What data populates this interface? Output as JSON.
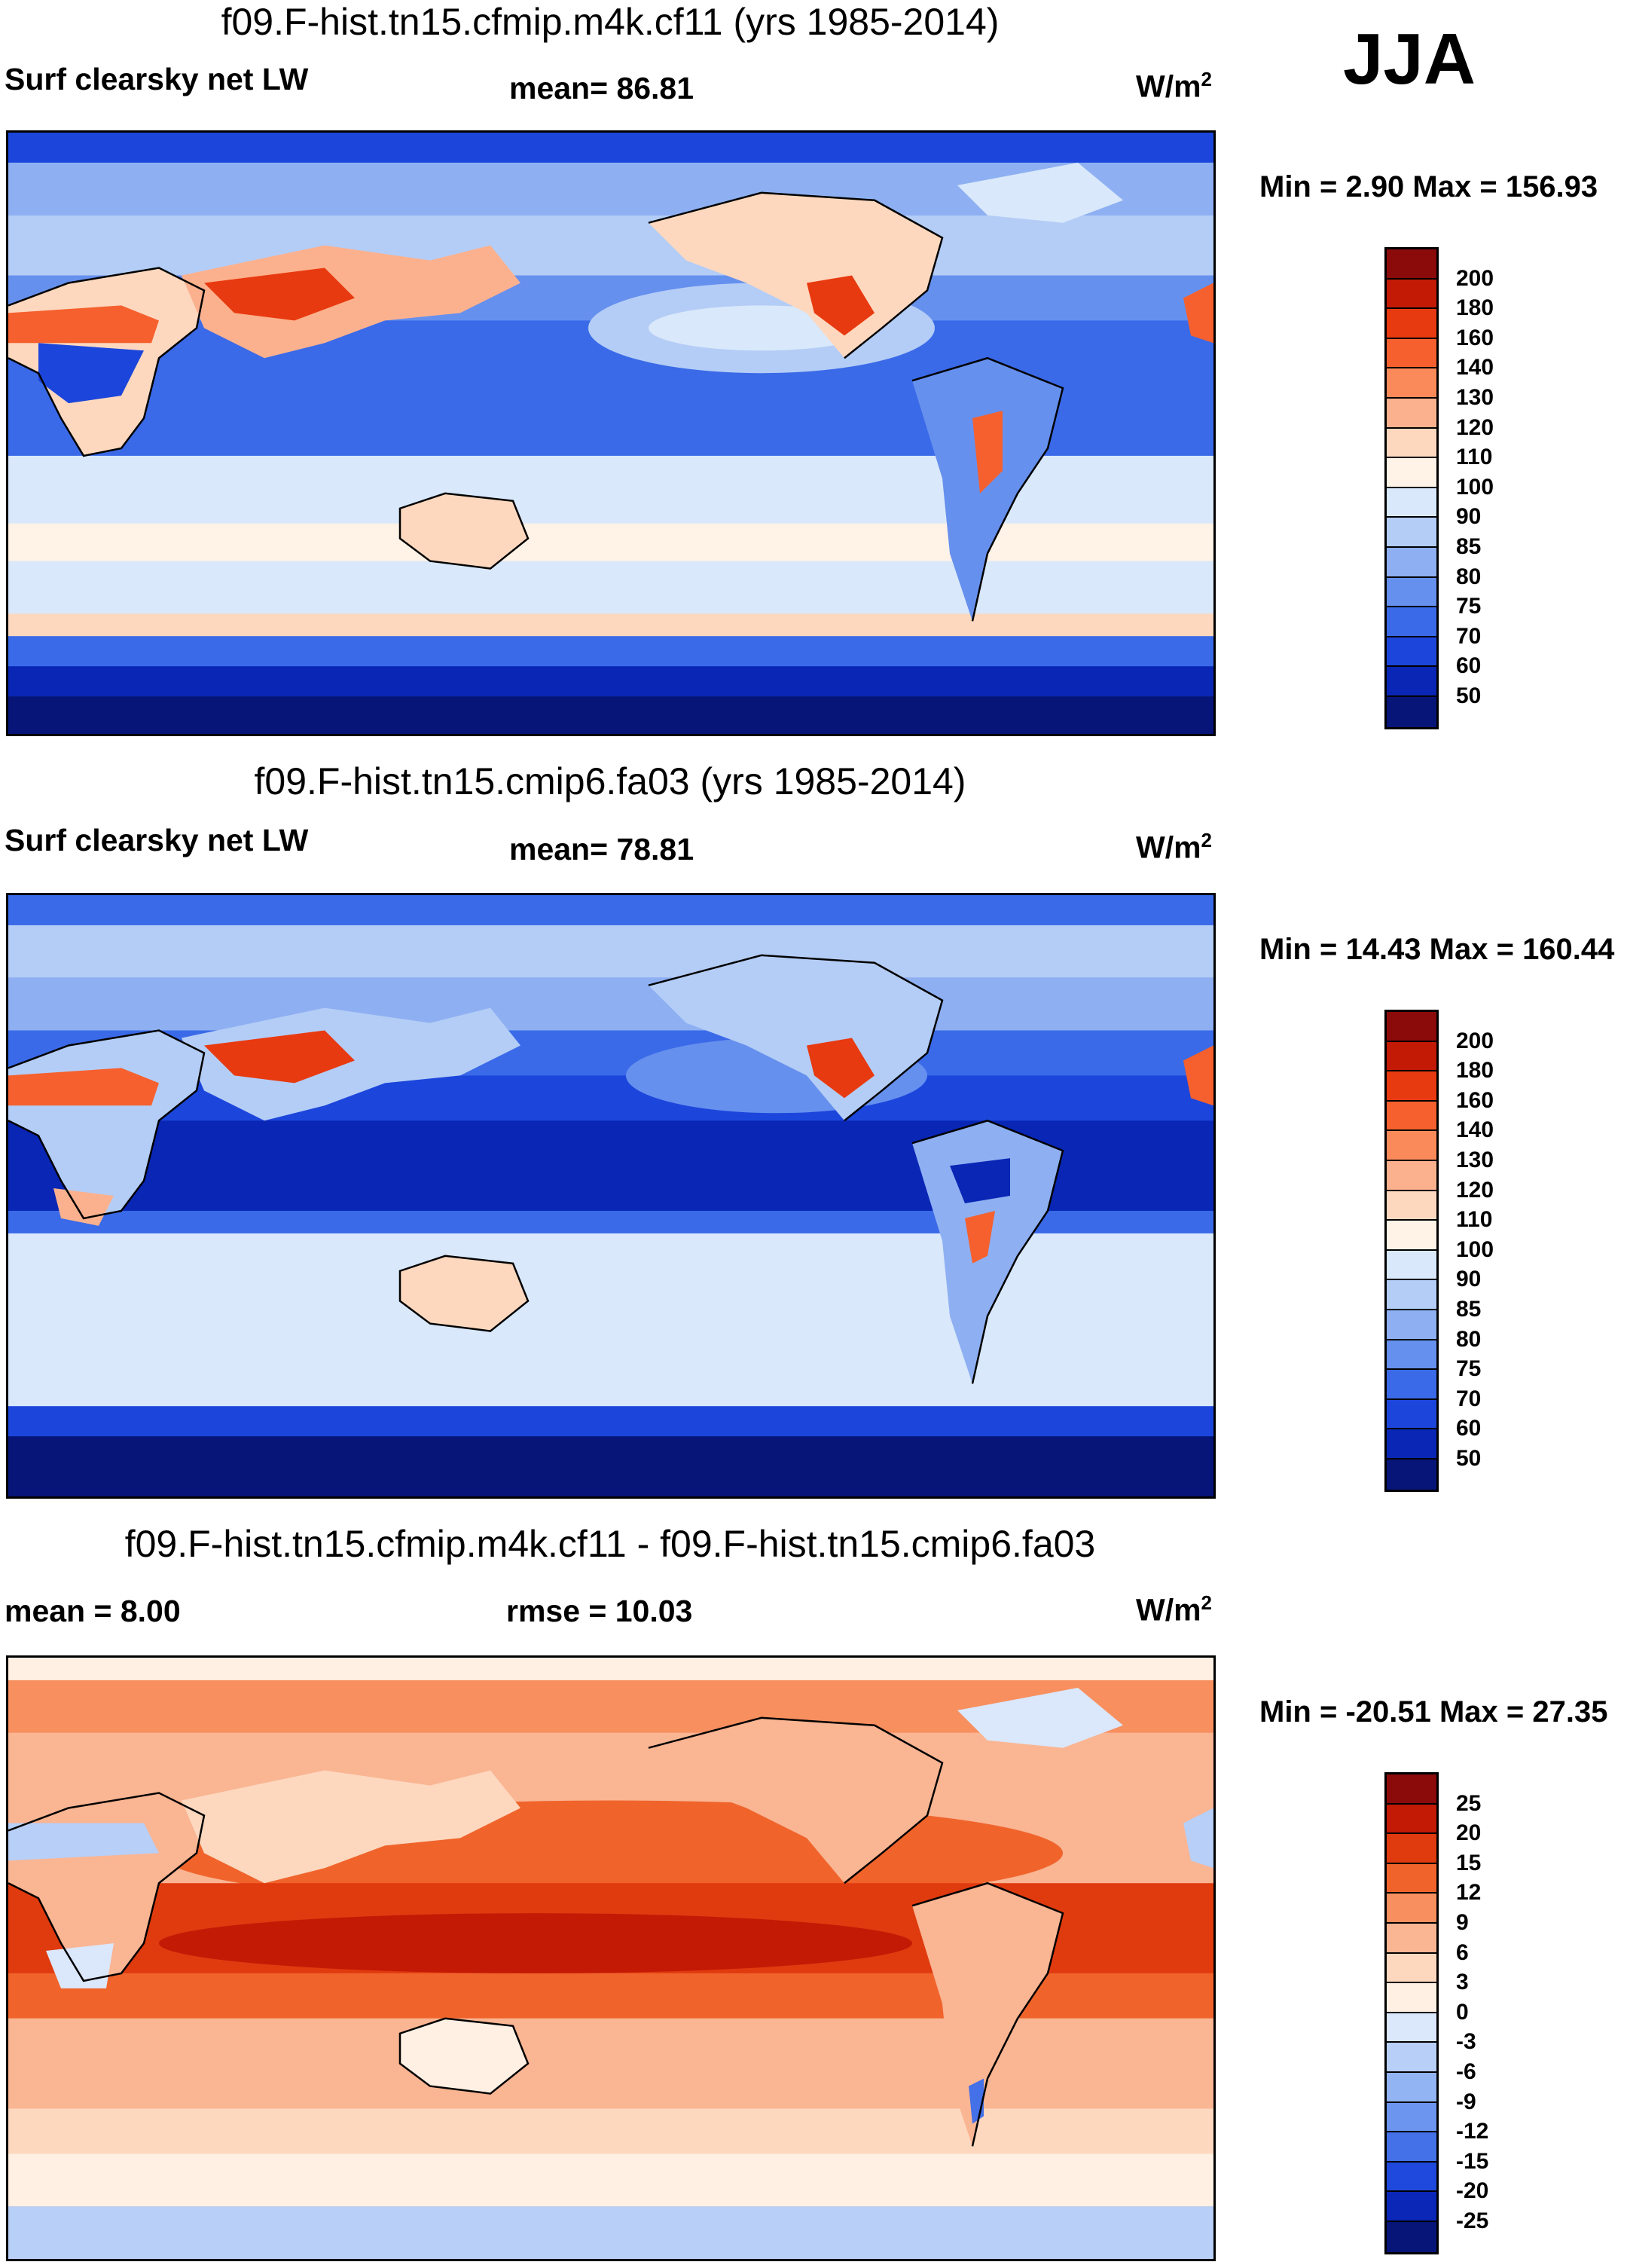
{
  "season": "JJA",
  "panels": [
    {
      "title": "f09.F-hist.tn15.cfmip.m4k.cf11 (yrs 1985-2014)",
      "left_label": "Surf clearsky net LW",
      "center_label": "mean=  86.81",
      "units_base": "W/m",
      "units_exp": "2",
      "minmax": "Min =   2.90 Max = 156.93",
      "colorbar": {
        "labels": [
          "200",
          "180",
          "160",
          "140",
          "130",
          "120",
          "110",
          "100",
          "90",
          "85",
          "80",
          "75",
          "70",
          "60",
          "50"
        ],
        "colors": [
          "#8b0a0a",
          "#c21a05",
          "#e83a10",
          "#f5602e",
          "#fa8a5a",
          "#fcb18e",
          "#fdd8bf",
          "#fff2e6",
          "#d9e8fb",
          "#b4cdf6",
          "#8eb0f2",
          "#6690ee",
          "#3a6ae8",
          "#1c46db",
          "#0a26b5",
          "#061577"
        ]
      }
    },
    {
      "title": "f09.F-hist.tn15.cmip6.fa03 (yrs 1985-2014)",
      "left_label": "Surf clearsky net LW",
      "center_label": "mean=  78.81",
      "units_base": "W/m",
      "units_exp": "2",
      "minmax": "Min =  14.43 Max = 160.44",
      "colorbar": {
        "labels": [
          "200",
          "180",
          "160",
          "140",
          "130",
          "120",
          "110",
          "100",
          "90",
          "85",
          "80",
          "75",
          "70",
          "60",
          "50"
        ],
        "colors": [
          "#8b0a0a",
          "#c21a05",
          "#e83a10",
          "#f5602e",
          "#fa8a5a",
          "#fcb18e",
          "#fdd8bf",
          "#fff2e6",
          "#d9e8fb",
          "#b4cdf6",
          "#8eb0f2",
          "#6690ee",
          "#3a6ae8",
          "#1c46db",
          "#0a26b5",
          "#061577"
        ]
      }
    },
    {
      "title": "f09.F-hist.tn15.cfmip.m4k.cf11 - f09.F-hist.tn15.cmip6.fa03",
      "left_label": "mean =   8.00",
      "center_label": "rmse =  10.03",
      "units_base": "W/m",
      "units_exp": "2",
      "minmax": "Min = -20.51 Max =  27.35",
      "colorbar": {
        "labels": [
          "25",
          "20",
          "15",
          "12",
          "9",
          "6",
          "3",
          "0",
          "-3",
          "-6",
          "-9",
          "-12",
          "-15",
          "-20",
          "-25"
        ],
        "colors": [
          "#8b0a0a",
          "#c21a05",
          "#e03a0f",
          "#f0642c",
          "#f78f5f",
          "#fab593",
          "#fdd8bf",
          "#fff0e3",
          "#dbe7fb",
          "#b8cff7",
          "#93b4f3",
          "#6c95ef",
          "#4470e8",
          "#1f49dc",
          "#0b27b8",
          "#061577"
        ]
      }
    }
  ]
}
